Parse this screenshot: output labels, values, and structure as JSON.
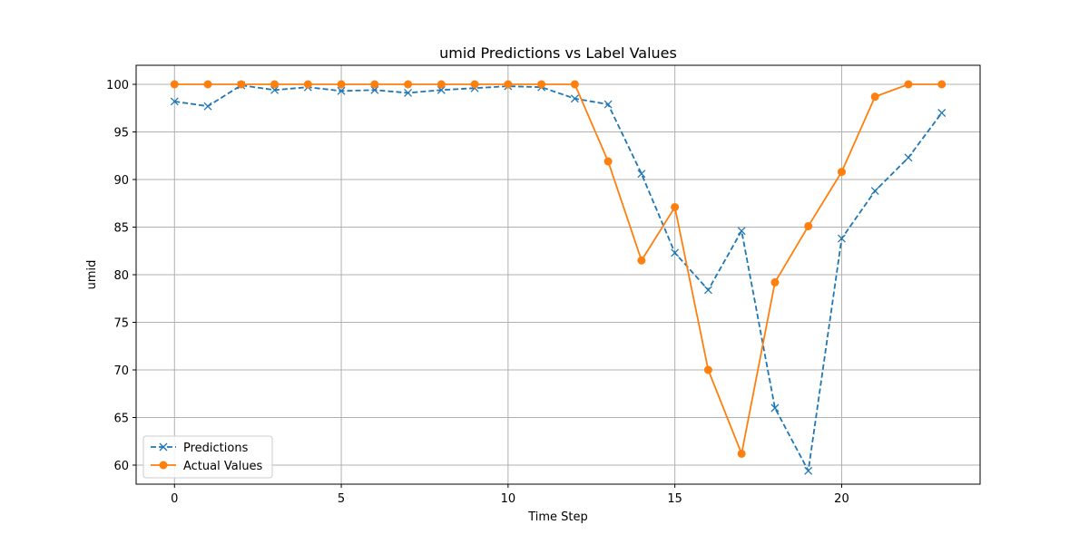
{
  "chart_data": {
    "type": "line",
    "title": "umid Predictions vs Label Values",
    "xlabel": "Time Step",
    "ylabel": "umid",
    "xlim": [
      -1.15,
      24.15
    ],
    "ylim": [
      58.0,
      102.0
    ],
    "xticks": [
      0,
      5,
      10,
      15,
      20
    ],
    "yticks": [
      60,
      65,
      70,
      75,
      80,
      85,
      90,
      95,
      100
    ],
    "grid": true,
    "legend_position": "lower-left",
    "x": [
      0,
      1,
      2,
      3,
      4,
      5,
      6,
      7,
      8,
      9,
      10,
      11,
      12,
      13,
      14,
      15,
      16,
      17,
      18,
      19,
      20,
      21,
      22,
      23
    ],
    "series": [
      {
        "name": "Predictions",
        "color": "#1f77b4",
        "line_style": "dashed",
        "marker": "x",
        "values": [
          98.2,
          97.7,
          99.9,
          99.4,
          99.7,
          99.3,
          99.4,
          99.1,
          99.4,
          99.6,
          99.8,
          99.7,
          98.5,
          97.9,
          90.6,
          82.3,
          78.4,
          84.6,
          66.0,
          59.4,
          83.8,
          88.8,
          92.3,
          97.0
        ]
      },
      {
        "name": "Actual Values",
        "color": "#ff7f0e",
        "line_style": "solid",
        "marker": "o",
        "values": [
          100.0,
          100.0,
          100.0,
          100.0,
          100.0,
          100.0,
          100.0,
          100.0,
          100.0,
          100.0,
          100.0,
          100.0,
          100.0,
          91.9,
          81.5,
          87.1,
          70.0,
          61.2,
          79.2,
          85.1,
          90.8,
          98.7,
          100.0,
          100.0
        ]
      }
    ]
  }
}
